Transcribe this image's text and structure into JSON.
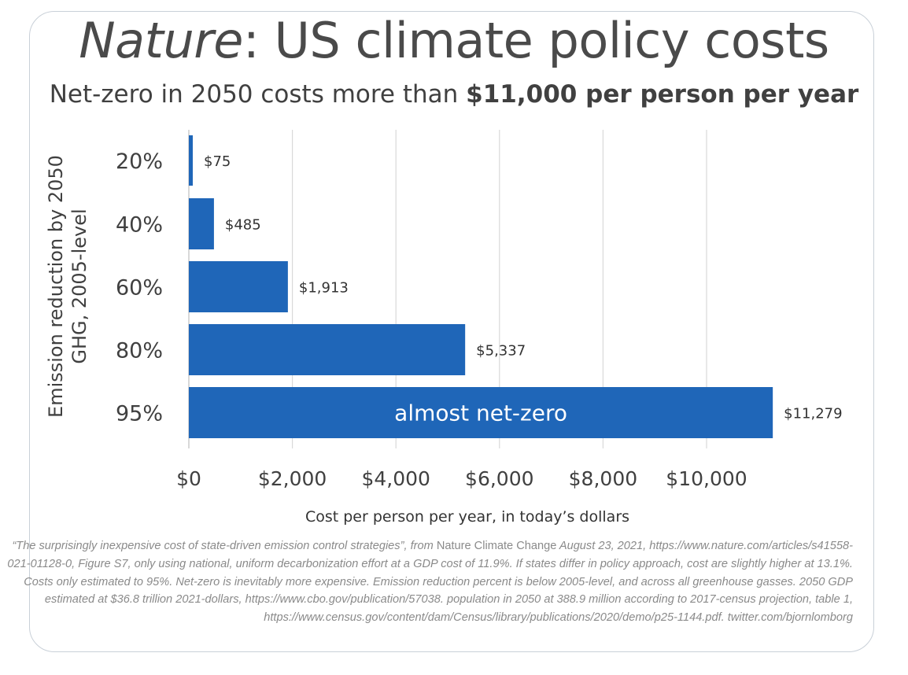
{
  "title": {
    "italic": "Nature",
    "rest": ": US climate policy costs"
  },
  "subtitle": {
    "plain": "Net-zero in 2050 costs more than ",
    "bold": "$11,000 per person per year"
  },
  "colors": {
    "bar": "#1f66b8",
    "grid": "#d9d9d9",
    "text": "#404040",
    "inside_label": "#ffffff"
  },
  "chart_data": {
    "type": "bar",
    "orientation": "horizontal",
    "categories": [
      "20%",
      "40%",
      "60%",
      "80%",
      "95%"
    ],
    "values": [
      75,
      485,
      1913,
      5337,
      11279
    ],
    "data_labels": [
      "$75",
      "$485",
      "$1,913",
      "$5,337",
      "$11,279"
    ],
    "annotation": {
      "category": "95%",
      "text": "almost net-zero"
    },
    "xlabel": "Cost per person per year, in today’s dollars",
    "ylabel": [
      "Emission reduction by 2050",
      "GHG, 2005-level"
    ],
    "xlim": [
      0,
      11279
    ],
    "xticks": [
      0,
      2000,
      4000,
      6000,
      8000,
      10000
    ],
    "xtick_labels": [
      "$0",
      "$2,000",
      "$4,000",
      "$6,000",
      "$8,000",
      "$10,000"
    ],
    "grid": "vertical"
  },
  "footnote": {
    "part1": "“The surprisingly inexpensive cost of state-driven emission control strategies”, from ",
    "journal": "Nature Climate Change",
    "part2": " August 23, 2021, https://www.nature.com/articles/s41558-021-01128-0, Figure S7, only using national, uniform decarbonization effort at a GDP cost of 11.9%. If states differ in policy approach, cost are slightly higher at 13.1%. Costs only estimated to 95%. Net-zero is inevitably more expensive. Emission reduction percent is below 2005-level, and across all greenhouse gasses. 2050 GDP estimated at $36.8 trillion 2021-dollars, https://www.cbo.gov/publication/57038. population in 2050 at 388.9 million according to 2017-census projection, table 1, https://www.census.gov/content/dam/Census/library/publications/2020/demo/p25-1144.pdf. twitter.com/bjornlomborg"
  }
}
